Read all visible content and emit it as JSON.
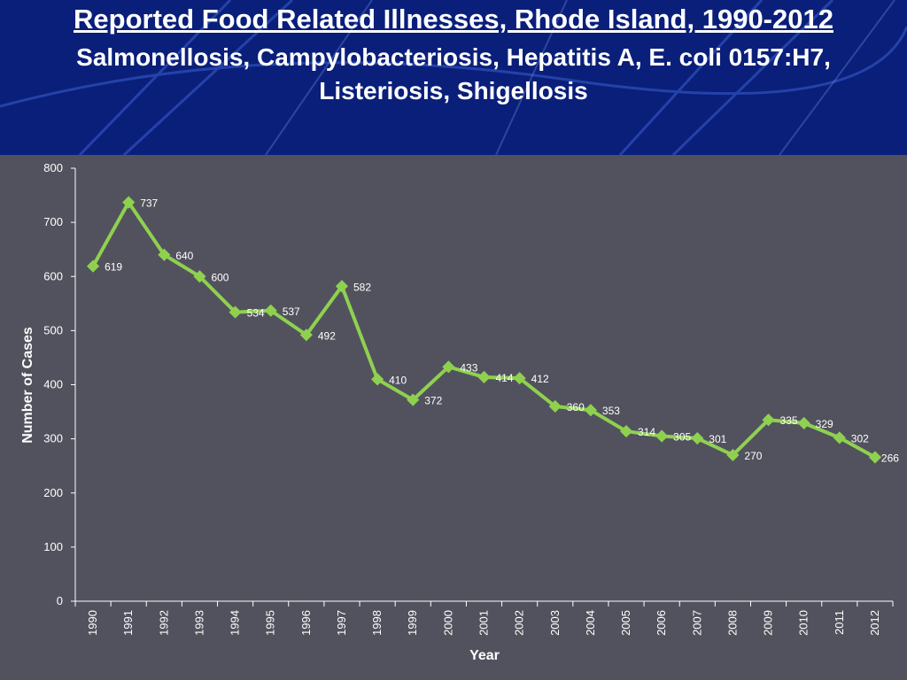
{
  "title": "Reported Food Related Illnesses,  Rhode Island, 1990-2012",
  "subtitle": "Salmonellosis, Campylobacteriosis, Hepatitis A,  E. coli 0157:H7,  Listeriosis, Shigellosis",
  "colors": {
    "header_background": "#0a1f7a",
    "chart_background": "#52525e",
    "line": "#8fd14f",
    "axis_text": "#ffffff"
  },
  "chart_data": {
    "type": "line",
    "xlabel": "Year",
    "ylabel": "Number of Cases",
    "ylim": [
      0,
      800
    ],
    "yticks": [
      0,
      100,
      200,
      300,
      400,
      500,
      600,
      700,
      800
    ],
    "grid": false,
    "legend": "none",
    "categories": [
      "1990",
      "1991",
      "1992",
      "1993",
      "1994",
      "1995",
      "1996",
      "1997",
      "1998",
      "1999",
      "2000",
      "2001",
      "2002",
      "2003",
      "2004",
      "2005",
      "2006",
      "2007",
      "2008",
      "2009",
      "2010",
      "2011",
      "2012"
    ],
    "series": [
      {
        "values": [
          619,
          737,
          640,
          600,
          534,
          537,
          492,
          582,
          410,
          372,
          433,
          414,
          412,
          360,
          353,
          314,
          305,
          301,
          270,
          335,
          329,
          302,
          266
        ]
      }
    ]
  }
}
